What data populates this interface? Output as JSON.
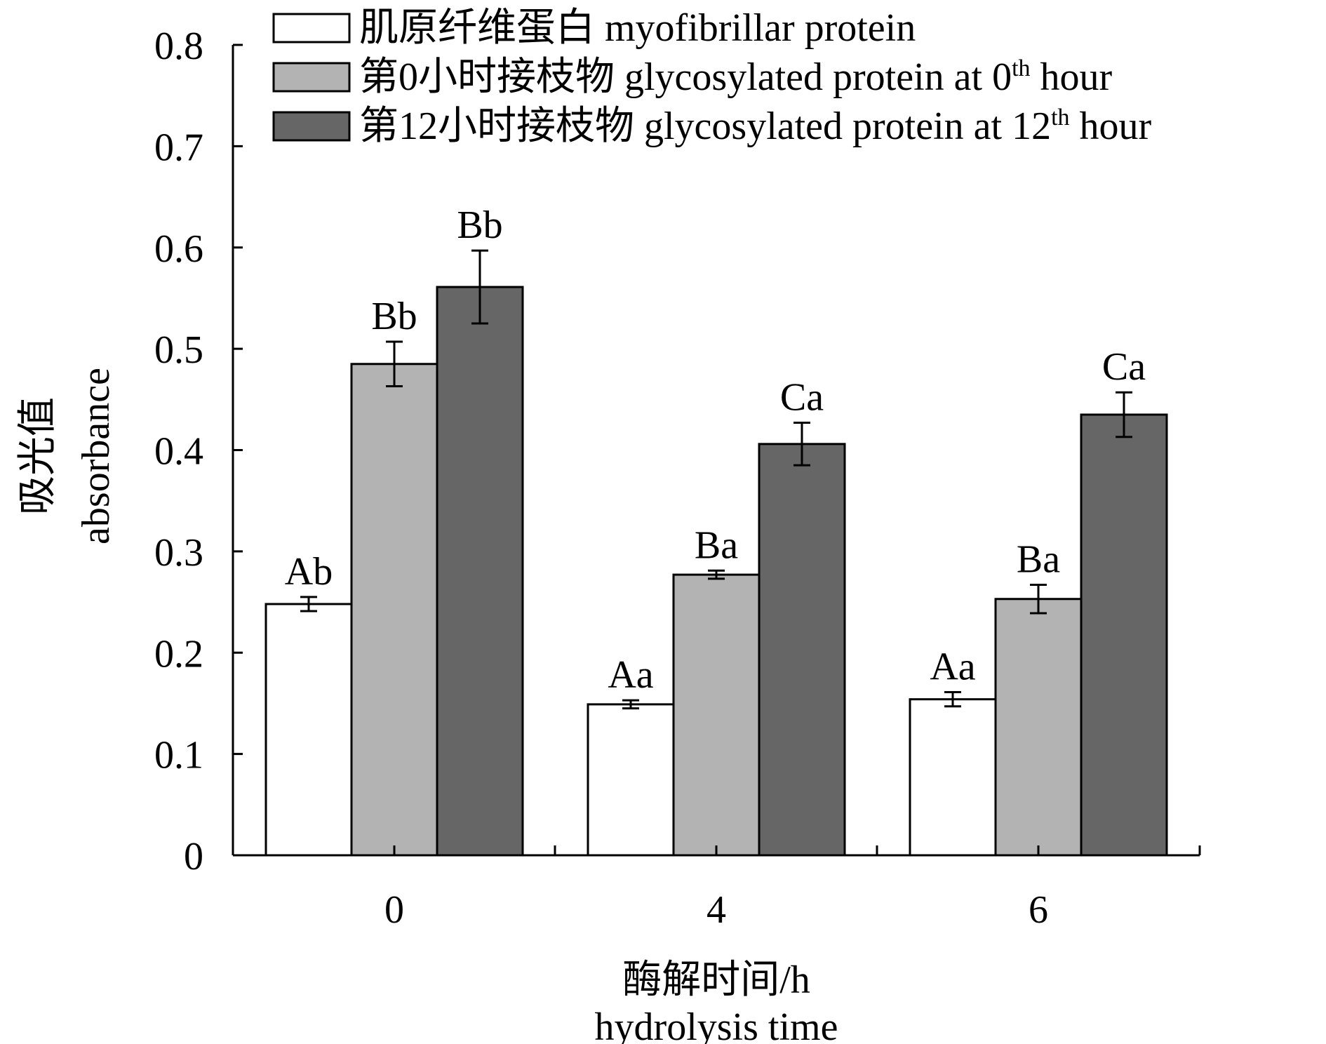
{
  "chart_data": {
    "type": "bar",
    "x_title_cn": "酶解时间/h",
    "x_title_en": "hydrolysis time",
    "y_title_cn": "吸光值",
    "y_title_en": "absorbance",
    "categories": [
      "0",
      "4",
      "6"
    ],
    "ylim": [
      0,
      0.8
    ],
    "yticks": [
      "0",
      "0.1",
      "0.2",
      "0.3",
      "0.4",
      "0.5",
      "0.6",
      "0.7",
      "0.8"
    ],
    "ytick_values": [
      0,
      0.1,
      0.2,
      0.3,
      0.4,
      0.5,
      0.6,
      0.7,
      0.8
    ],
    "legend_position": "top-right",
    "grid": false,
    "series": [
      {
        "legend_prefix": "肌原纤维蛋白 myofibrillar protein",
        "legend_sup": "",
        "legend_suffix": "",
        "color": "#ffffff",
        "values": [
          0.248,
          0.149,
          0.154
        ],
        "errors": [
          0.007,
          0.004,
          0.007
        ],
        "labels": [
          "Ab",
          "Aa",
          "Aa"
        ]
      },
      {
        "legend_prefix": "第0小时接枝物 glycosylated protein at 0",
        "legend_sup": "th",
        "legend_suffix": " hour",
        "color": "#b3b3b3",
        "values": [
          0.485,
          0.277,
          0.253
        ],
        "errors": [
          0.022,
          0.004,
          0.014
        ],
        "labels": [
          "Bb",
          "Ba",
          "Ba"
        ]
      },
      {
        "legend_prefix": "第12小时接枝物 glycosylated protein at 12",
        "legend_sup": "th",
        "legend_suffix": " hour",
        "color": "#666666",
        "values": [
          0.561,
          0.406,
          0.435
        ],
        "errors": [
          0.036,
          0.021,
          0.022
        ],
        "labels": [
          "Bb",
          "Ca",
          "Ca"
        ]
      }
    ]
  }
}
